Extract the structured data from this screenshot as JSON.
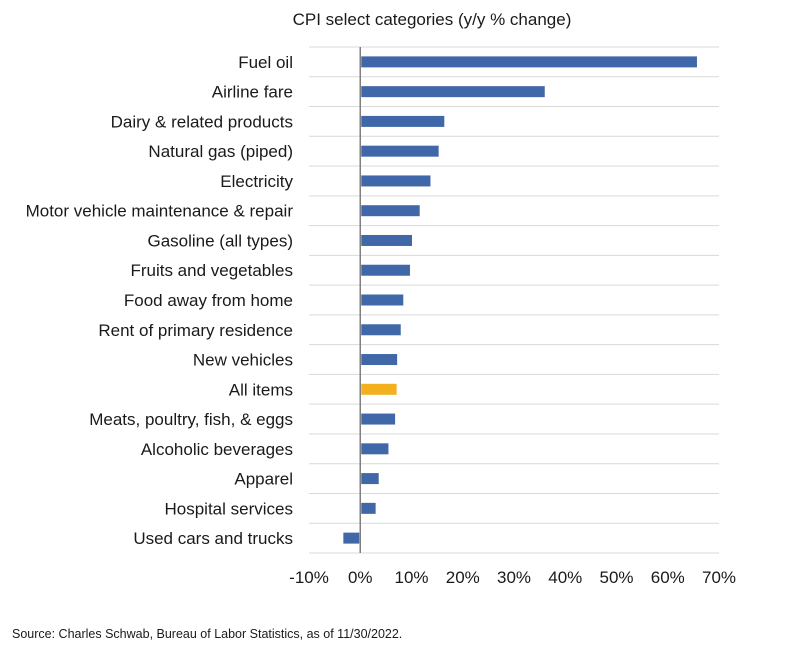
{
  "chart_data": {
    "type": "bar",
    "orientation": "horizontal",
    "title": "CPI select categories (y/y % change)",
    "categories": [
      "Fuel oil",
      "Airline fare",
      "Dairy & related products",
      "Natural gas (piped)",
      "Electricity",
      "Motor vehicle maintenance & repair",
      "Gasoline (all types)",
      "Fruits and vegetables",
      "Food away from home",
      "Rent of primary residence",
      "New vehicles",
      "All items",
      "Meats, poultry, fish, & eggs",
      "Alcoholic beverages",
      "Apparel",
      "Hospital services",
      "Used cars and trucks"
    ],
    "values": [
      65.7,
      36.0,
      16.4,
      15.3,
      13.7,
      11.6,
      10.1,
      9.7,
      8.4,
      7.9,
      7.2,
      7.1,
      6.8,
      5.5,
      3.6,
      3.0,
      -3.3
    ],
    "highlight_category": "All items",
    "colors": {
      "bar": "#4068A8",
      "highlight": "#F2B01E",
      "grid": "#D9D9D9",
      "zero_line": "#7F7F7F"
    },
    "xlim": [
      -10,
      70
    ],
    "xticks": [
      "-10%",
      "0%",
      "10%",
      "20%",
      "30%",
      "40%",
      "50%",
      "60%",
      "70%"
    ],
    "xtick_values": [
      -10,
      0,
      10,
      20,
      30,
      40,
      50,
      60,
      70
    ],
    "xlabel": "",
    "ylabel": "",
    "grid": "horizontal",
    "legend": "none"
  },
  "source": "Source: Charles Schwab, Bureau of Labor Statistics, as of 11/30/2022."
}
